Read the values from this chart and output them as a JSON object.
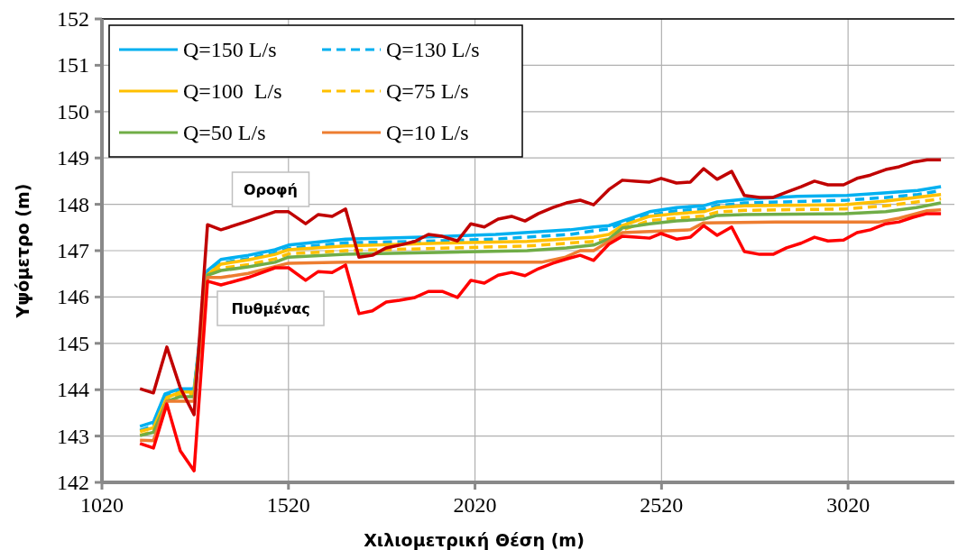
{
  "chart_data": {
    "type": "line",
    "xlabel": "Χιλιομετρική Θέση (m)",
    "ylabel": "Υψόμετρο (m)",
    "xlim": [
      1020,
      3305
    ],
    "xticks": [
      1020,
      1520,
      2020,
      2520,
      3020
    ],
    "ylim": [
      142,
      152
    ],
    "yticks": [
      142,
      143,
      144,
      145,
      146,
      147,
      148,
      149,
      150,
      151,
      152
    ],
    "grid": true,
    "legend": "top left",
    "marker": "none",
    "annotations": [
      "Οροφή",
      "Πυθμένας"
    ],
    "series": [
      {
        "name": "Q=150 L/s",
        "color": "#00b0f0",
        "line_style": "solid",
        "x": [
          1122,
          1158,
          1189,
          1230,
          1267,
          1303,
          1339,
          1412,
          1484,
          1520,
          1673,
          1876,
          2075,
          2275,
          2338,
          2379,
          2415,
          2488,
          2560,
          2633,
          2669,
          2742,
          2884,
          3017,
          3125,
          3207,
          3269
        ],
        "values": [
          143.21,
          143.3,
          143.91,
          144.02,
          144.02,
          146.57,
          146.81,
          146.9,
          147.02,
          147.12,
          147.25,
          147.29,
          147.35,
          147.45,
          147.51,
          147.54,
          147.64,
          147.84,
          147.93,
          147.97,
          148.05,
          148.11,
          148.17,
          148.19,
          148.25,
          148.3,
          148.38
        ]
      },
      {
        "name": "Q=130 L/s",
        "color": "#00b0f0",
        "line_style": "dashed",
        "x": [
          1122,
          1158,
          1189,
          1230,
          1267,
          1303,
          1339,
          1412,
          1484,
          1520,
          1673,
          1876,
          2075,
          2275,
          2338,
          2379,
          2415,
          2488,
          2560,
          2633,
          2669,
          2742,
          2884,
          3017,
          3125,
          3207,
          3269
        ],
        "values": [
          143.12,
          143.22,
          143.86,
          143.98,
          143.98,
          146.52,
          146.73,
          146.83,
          146.95,
          147.05,
          147.17,
          147.2,
          147.25,
          147.35,
          147.43,
          147.47,
          147.6,
          147.77,
          147.86,
          147.9,
          147.97,
          148.03,
          148.06,
          148.09,
          148.15,
          148.21,
          148.3
        ]
      },
      {
        "name": "Q=100  L/s",
        "color": "#ffc000",
        "line_style": "solid",
        "x": [
          1122,
          1158,
          1194,
          1230,
          1267,
          1303,
          1339,
          1412,
          1484,
          1520,
          1673,
          1920,
          2160,
          2338,
          2379,
          2415,
          2488,
          2560,
          2633,
          2669,
          2742,
          3012,
          3121,
          3203,
          3269
        ],
        "values": [
          143.1,
          143.18,
          143.83,
          143.95,
          143.95,
          146.48,
          146.71,
          146.8,
          146.92,
          147.02,
          147.1,
          147.16,
          147.2,
          147.29,
          147.35,
          147.54,
          147.74,
          147.8,
          147.84,
          147.93,
          147.97,
          147.99,
          148.07,
          148.15,
          148.21
        ]
      },
      {
        "name": "Q=75 L/s",
        "color": "#ffc000",
        "line_style": "dashed",
        "x": [
          1122,
          1158,
          1194,
          1230,
          1267,
          1303,
          1339,
          1412,
          1484,
          1520,
          1673,
          1920,
          2160,
          2338,
          2379,
          2415,
          2488,
          2560,
          2633,
          2669,
          2742,
          3012,
          3121,
          3203,
          3269
        ],
        "values": [
          143.02,
          143.1,
          143.8,
          143.9,
          143.9,
          146.45,
          146.62,
          146.7,
          146.82,
          146.93,
          147.0,
          147.05,
          147.1,
          147.2,
          147.25,
          147.45,
          147.65,
          147.7,
          147.75,
          147.83,
          147.87,
          147.9,
          147.97,
          148.05,
          148.12
        ]
      },
      {
        "name": "Q=50 L/s",
        "color": "#70ad47",
        "line_style": "solid",
        "x": [
          1122,
          1158,
          1194,
          1230,
          1267,
          1303,
          1339,
          1412,
          1484,
          1520,
          1673,
          1920,
          2160,
          2265,
          2338,
          2379,
          2415,
          2488,
          2560,
          2633,
          2669,
          2742,
          3012,
          3121,
          3203,
          3269
        ],
        "values": [
          143.01,
          143.08,
          143.75,
          143.85,
          143.85,
          146.47,
          146.57,
          146.65,
          146.75,
          146.86,
          146.92,
          146.96,
          147.0,
          147.06,
          147.12,
          147.25,
          147.49,
          147.58,
          147.64,
          147.68,
          147.76,
          147.78,
          147.8,
          147.84,
          147.93,
          148.03
        ]
      },
      {
        "name": "Q=10 L/s",
        "color": "#ed7d31",
        "line_style": "solid",
        "x": [
          1122,
          1158,
          1194,
          1267,
          1303,
          1339,
          1412,
          1520,
          1673,
          2198,
          2263,
          2302,
          2338,
          2379,
          2415,
          2597,
          2633,
          2826,
          3104,
          3157,
          3232,
          3269
        ],
        "values": [
          142.91,
          142.9,
          143.75,
          143.75,
          146.42,
          146.42,
          146.51,
          146.73,
          146.75,
          146.75,
          146.86,
          147.0,
          147.0,
          147.2,
          147.39,
          147.45,
          147.6,
          147.62,
          147.62,
          147.7,
          147.86,
          147.88
        ]
      },
      {
        "color": "#c00000",
        "line_style": "solid",
        "x": [
          1122,
          1158,
          1194,
          1230,
          1267,
          1303,
          1339,
          1412,
          1484,
          1520,
          1566,
          1600,
          1637,
          1673,
          1709,
          1745,
          1782,
          1818,
          1859,
          1895,
          1932,
          1973,
          2009,
          2045,
          2082,
          2118,
          2154,
          2190,
          2229,
          2265,
          2302,
          2338,
          2379,
          2415,
          2451,
          2488,
          2519,
          2560,
          2597,
          2633,
          2669,
          2708,
          2742,
          2783,
          2819,
          2855,
          2894,
          2930,
          2966,
          3008,
          3044,
          3080,
          3121,
          3157,
          3194,
          3232,
          3269
        ],
        "values": [
          144.02,
          143.93,
          144.92,
          144.04,
          143.46,
          147.56,
          147.45,
          147.64,
          147.84,
          147.84,
          147.58,
          147.78,
          147.74,
          147.9,
          146.86,
          146.9,
          147.06,
          147.12,
          147.2,
          147.35,
          147.31,
          147.21,
          147.58,
          147.51,
          147.68,
          147.74,
          147.64,
          147.8,
          147.93,
          148.03,
          148.09,
          147.99,
          148.32,
          148.52,
          148.5,
          148.48,
          148.56,
          148.46,
          148.48,
          148.77,
          148.54,
          148.71,
          148.19,
          148.15,
          148.15,
          148.26,
          148.38,
          148.5,
          148.42,
          148.42,
          148.56,
          148.63,
          148.75,
          148.81,
          148.91,
          148.96,
          148.96
        ]
      },
      {
        "color": "#ff0000",
        "line_style": "solid",
        "x": [
          1122,
          1158,
          1194,
          1230,
          1267,
          1303,
          1339,
          1412,
          1484,
          1520,
          1566,
          1600,
          1637,
          1673,
          1709,
          1745,
          1782,
          1818,
          1859,
          1895,
          1932,
          1973,
          2009,
          2045,
          2082,
          2118,
          2154,
          2190,
          2229,
          2265,
          2302,
          2338,
          2379,
          2415,
          2451,
          2488,
          2519,
          2560,
          2597,
          2633,
          2669,
          2708,
          2742,
          2783,
          2819,
          2855,
          2894,
          2930,
          2966,
          3008,
          3044,
          3080,
          3121,
          3157,
          3194,
          3232,
          3269
        ],
        "values": [
          142.84,
          142.74,
          143.69,
          142.68,
          142.25,
          146.34,
          146.26,
          146.42,
          146.63,
          146.63,
          146.36,
          146.55,
          146.53,
          146.69,
          145.64,
          145.7,
          145.89,
          145.93,
          145.99,
          146.12,
          146.12,
          145.99,
          146.36,
          146.3,
          146.47,
          146.53,
          146.46,
          146.61,
          146.73,
          146.82,
          146.9,
          146.79,
          147.14,
          147.31,
          147.29,
          147.27,
          147.37,
          147.25,
          147.29,
          147.54,
          147.33,
          147.51,
          146.98,
          146.92,
          146.92,
          147.06,
          147.16,
          147.29,
          147.21,
          147.23,
          147.39,
          147.45,
          147.58,
          147.62,
          147.72,
          147.8,
          147.8
        ]
      }
    ]
  }
}
